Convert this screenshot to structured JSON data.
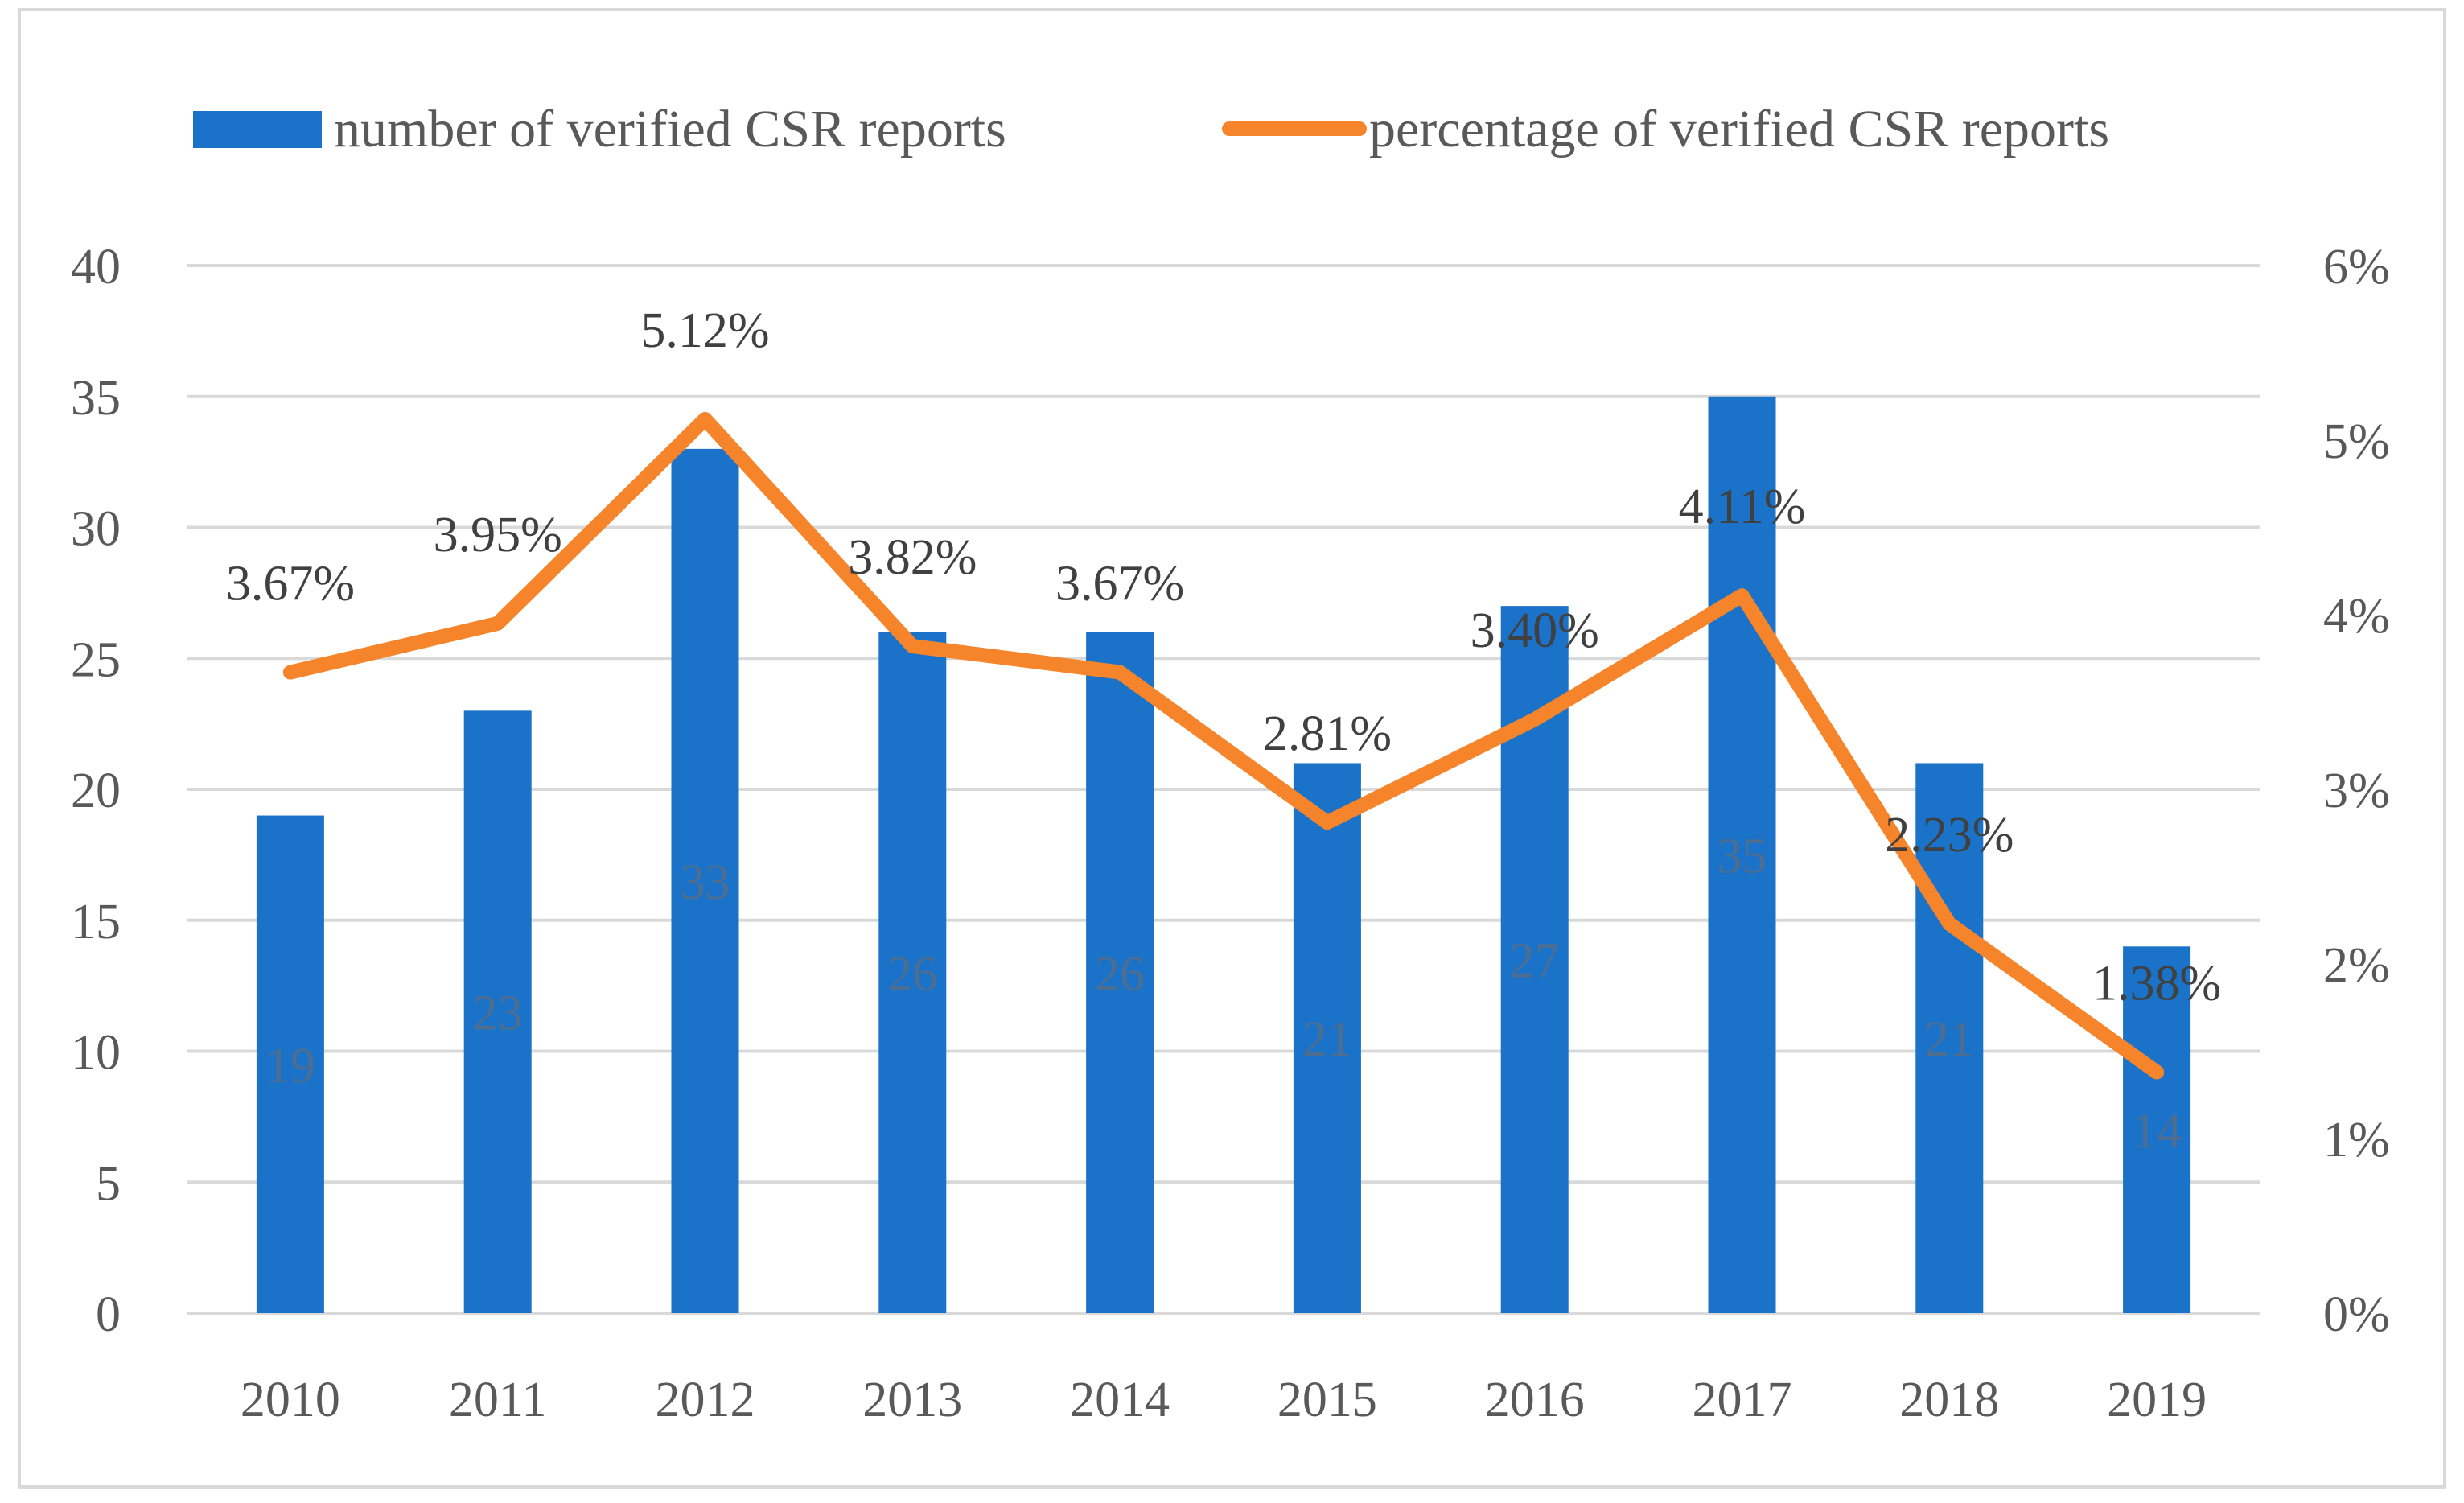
{
  "chart_data": {
    "type": "bar",
    "categories": [
      "2010",
      "2011",
      "2012",
      "2013",
      "2014",
      "2015",
      "2016",
      "2017",
      "2018",
      "2019"
    ],
    "series": [
      {
        "name": "number of verified CSR reports",
        "type": "bar",
        "axis": "left",
        "color": "#1a73c9",
        "values": [
          19,
          23,
          33,
          26,
          26,
          21,
          27,
          35,
          21,
          14
        ],
        "labels": [
          "19",
          "23",
          "33",
          "26",
          "26",
          "21",
          "27",
          "35",
          "21",
          "14"
        ]
      },
      {
        "name": "percentage of verified CSR reports",
        "type": "line",
        "axis": "right",
        "color": "#f5842a",
        "values": [
          3.67,
          3.95,
          5.12,
          3.82,
          3.67,
          2.81,
          3.4,
          4.11,
          2.23,
          1.38
        ],
        "labels": [
          "3.67%",
          "3.95%",
          "5.12%",
          "3.82%",
          "3.67%",
          "2.81%",
          "3.40%",
          "4.11%",
          "2.23%",
          "1.38%"
        ]
      }
    ],
    "y_left": {
      "ylim": [
        0,
        40
      ],
      "ticks": [
        "0",
        "5",
        "10",
        "15",
        "20",
        "25",
        "30",
        "35",
        "40"
      ]
    },
    "y_right": {
      "ylim": [
        0,
        6
      ],
      "ticks": [
        "0%",
        "1%",
        "2%",
        "3%",
        "4%",
        "5%",
        "6%"
      ]
    },
    "grid": true,
    "legend_position": "top",
    "title": "",
    "xlabel": "",
    "ylabel": ""
  }
}
